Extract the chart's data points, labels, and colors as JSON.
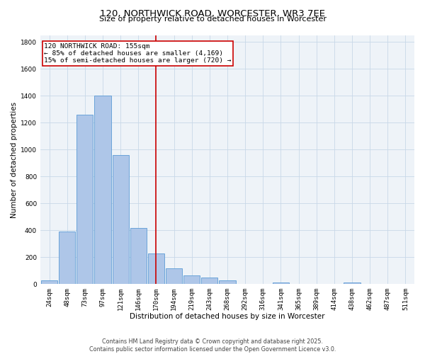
{
  "title": "120, NORTHWICK ROAD, WORCESTER, WR3 7EE",
  "subtitle": "Size of property relative to detached houses in Worcester",
  "xlabel": "Distribution of detached houses by size in Worcester",
  "ylabel": "Number of detached properties",
  "categories": [
    "24sqm",
    "48sqm",
    "73sqm",
    "97sqm",
    "121sqm",
    "146sqm",
    "170sqm",
    "194sqm",
    "219sqm",
    "243sqm",
    "268sqm",
    "292sqm",
    "316sqm",
    "341sqm",
    "365sqm",
    "389sqm",
    "414sqm",
    "438sqm",
    "462sqm",
    "487sqm",
    "511sqm"
  ],
  "values": [
    25,
    390,
    1260,
    1400,
    960,
    415,
    230,
    115,
    65,
    50,
    25,
    0,
    0,
    10,
    0,
    0,
    0,
    10,
    0,
    0,
    0
  ],
  "bar_color": "#aec6e8",
  "bar_edge_color": "#5b9bd5",
  "vline_x": 6.0,
  "vline_color": "#cc0000",
  "annotation_line1": "120 NORTHWICK ROAD: 155sqm",
  "annotation_line2": "← 85% of detached houses are smaller (4,169)",
  "annotation_line3": "15% of semi-detached houses are larger (720) →",
  "annotation_box_color": "#cc0000",
  "ylim": [
    0,
    1850
  ],
  "yticks": [
    0,
    200,
    400,
    600,
    800,
    1000,
    1200,
    1400,
    1600,
    1800
  ],
  "grid_color": "#c8d8e8",
  "background_color": "#eef3f8",
  "footer": "Contains HM Land Registry data © Crown copyright and database right 2025.\nContains public sector information licensed under the Open Government Licence v3.0.",
  "title_fontsize": 9.5,
  "subtitle_fontsize": 8,
  "xlabel_fontsize": 7.5,
  "ylabel_fontsize": 7.5,
  "tick_fontsize": 6.5,
  "annotation_fontsize": 6.8,
  "footer_fontsize": 5.8
}
